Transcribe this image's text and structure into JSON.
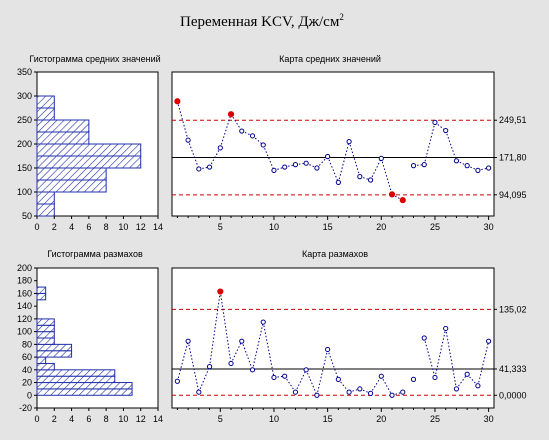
{
  "title_main": "Переменная KCV, Дж/см",
  "title_sup": "2",
  "colors": {
    "background": "#e4e4e4",
    "plot_bg": "#ffffff",
    "data": "#00008b",
    "out_of_control": "#dd0000",
    "limit": "#cc0000",
    "center": "#000000",
    "hist_fill": "#1f2fa8"
  },
  "chart_data": [
    {
      "id": "means-histogram",
      "type": "bar",
      "orientation": "horizontal",
      "title": "Гистограмма средних значений",
      "bins": [
        {
          "from": 50,
          "to": 75,
          "count": 2
        },
        {
          "from": 75,
          "to": 100,
          "count": 2
        },
        {
          "from": 100,
          "to": 125,
          "count": 8
        },
        {
          "from": 125,
          "to": 150,
          "count": 8
        },
        {
          "from": 150,
          "to": 175,
          "count": 12
        },
        {
          "from": 175,
          "to": 200,
          "count": 12
        },
        {
          "from": 200,
          "to": 225,
          "count": 6
        },
        {
          "from": 225,
          "to": 250,
          "count": 6
        },
        {
          "from": 250,
          "to": 275,
          "count": 2
        },
        {
          "from": 275,
          "to": 300,
          "count": 2
        }
      ],
      "xlim": [
        0,
        14
      ],
      "ylim": [
        50,
        350
      ],
      "xticks": [
        "0",
        "2",
        "4",
        "6",
        "8",
        "10",
        "12",
        "14"
      ],
      "yticks": [
        "50",
        "100",
        "150",
        "200",
        "250",
        "300",
        "350"
      ],
      "fill": "hatched"
    },
    {
      "id": "means-chart",
      "type": "line",
      "title": "Карта средних значений",
      "x": [
        1,
        2,
        3,
        4,
        5,
        6,
        7,
        8,
        9,
        10,
        11,
        12,
        13,
        14,
        15,
        16,
        17,
        18,
        19,
        20,
        21,
        22,
        23,
        24,
        25,
        26,
        27,
        28,
        29,
        30
      ],
      "y": [
        289,
        208,
        148,
        152,
        192,
        262,
        227,
        217,
        198,
        145,
        152,
        157,
        160,
        150,
        174,
        120,
        205,
        132,
        125,
        170,
        95,
        83,
        155,
        157,
        245,
        228,
        165,
        155,
        145,
        150
      ],
      "out_of_control": [
        1,
        6,
        21,
        22
      ],
      "broken_segments": [
        [
          22,
          23
        ]
      ],
      "ucl": 249.51,
      "center": 171.8,
      "lcl": 94.095,
      "limit_labels": [
        "249,51",
        "171,80",
        "94,095"
      ],
      "xlim": [
        0.5,
        30.5
      ],
      "ylim": [
        50,
        350
      ],
      "xticks": [
        "5",
        "10",
        "15",
        "20",
        "25",
        "30"
      ]
    },
    {
      "id": "ranges-histogram",
      "type": "bar",
      "orientation": "horizontal",
      "title": "Гистограмма размахов",
      "bins": [
        {
          "from": 0,
          "to": 10,
          "count": 11
        },
        {
          "from": 10,
          "to": 20,
          "count": 11
        },
        {
          "from": 20,
          "to": 30,
          "count": 9
        },
        {
          "from": 30,
          "to": 40,
          "count": 9
        },
        {
          "from": 40,
          "to": 50,
          "count": 2
        },
        {
          "from": 50,
          "to": 60,
          "count": 1
        },
        {
          "from": 60,
          "to": 70,
          "count": 4
        },
        {
          "from": 70,
          "to": 80,
          "count": 4
        },
        {
          "from": 80,
          "to": 90,
          "count": 2
        },
        {
          "from": 90,
          "to": 100,
          "count": 2
        },
        {
          "from": 100,
          "to": 110,
          "count": 2
        },
        {
          "from": 110,
          "to": 120,
          "count": 2
        },
        {
          "from": 120,
          "to": 130,
          "count": 0
        },
        {
          "from": 130,
          "to": 140,
          "count": 0
        },
        {
          "from": 140,
          "to": 150,
          "count": 0
        },
        {
          "from": 150,
          "to": 160,
          "count": 1
        },
        {
          "from": 160,
          "to": 170,
          "count": 1
        }
      ],
      "xlim": [
        0,
        14
      ],
      "ylim": [
        -20,
        200
      ],
      "xticks": [
        "0",
        "2",
        "4",
        "6",
        "8",
        "10",
        "12",
        "14"
      ],
      "yticks": [
        "-20",
        "0",
        "20",
        "40",
        "60",
        "80",
        "100",
        "120",
        "140",
        "160",
        "180",
        "200"
      ],
      "fill": "hatched"
    },
    {
      "id": "ranges-chart",
      "type": "line",
      "title": "Карта размахов",
      "x": [
        1,
        2,
        3,
        4,
        5,
        6,
        7,
        8,
        9,
        10,
        11,
        12,
        13,
        14,
        15,
        16,
        17,
        18,
        19,
        20,
        21,
        22,
        23,
        24,
        25,
        26,
        27,
        28,
        29,
        30
      ],
      "y": [
        22,
        85,
        5,
        45,
        163,
        50,
        85,
        40,
        115,
        28,
        30,
        5,
        40,
        0,
        72,
        25,
        5,
        10,
        3,
        30,
        0,
        5,
        25,
        90,
        28,
        105,
        10,
        33,
        15,
        85
      ],
      "out_of_control": [
        5
      ],
      "broken_segments": [
        [
          22,
          23
        ],
        [
          23,
          24
        ]
      ],
      "ucl": 135.02,
      "center": 41.333,
      "lcl": 0.0,
      "limit_labels": [
        "135,02",
        "41,333",
        "0,0000"
      ],
      "xlim": [
        0.5,
        30.5
      ],
      "ylim": [
        -20,
        200
      ],
      "xticks": [
        "5",
        "10",
        "15",
        "20",
        "25",
        "30"
      ]
    }
  ]
}
